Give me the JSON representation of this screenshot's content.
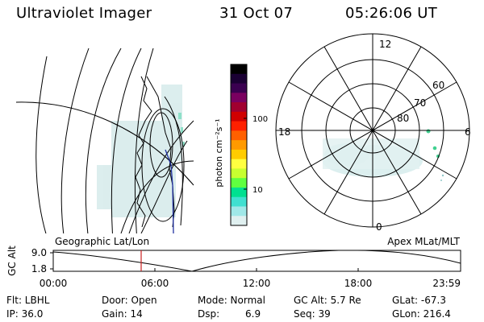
{
  "header": {
    "instrument": "Ultraviolet Imager",
    "date": "31 Oct 07",
    "time": "05:26:06 UT"
  },
  "colorbar": {
    "unit_label": "photon cm⁻²s⁻¹",
    "ticks": [
      "100",
      "10"
    ],
    "colors": [
      "#000000",
      "#1a0033",
      "#3a0050",
      "#7a0060",
      "#a00030",
      "#d00000",
      "#ff2000",
      "#ff6000",
      "#ff9a00",
      "#ffcc00",
      "#ffff40",
      "#c8ff30",
      "#60ff40",
      "#00e090",
      "#40e0d0",
      "#a0e8e8",
      "#e0f0f0"
    ]
  },
  "polar_plot": {
    "mlt_labels": {
      "top": "12",
      "right": "6",
      "bottom": "0",
      "left": "18"
    },
    "lat_labels": [
      "60",
      "70",
      "80"
    ]
  },
  "altitude_plot": {
    "left_title": "Geographic Lat/Lon",
    "right_title": "Apex MLat/MLT",
    "ylabel": "GC Alt",
    "yticks": [
      "9.0",
      "1.8"
    ],
    "xticks": [
      "00:00",
      "06:00",
      "12:00",
      "18:00",
      "23:59"
    ],
    "marker_color": "#cc2222"
  },
  "info": {
    "flt_label": "Flt: LBHL",
    "ip_label": "IP: 36.0",
    "door_label": "Door: Open",
    "gain_label": "Gain: 14",
    "mode_label": "Mode: Normal",
    "dsp_label": "Dsp:",
    "dsp_value": "6.9",
    "gcalt_label": "GC Alt: 5.7 Re",
    "seq_label": "Seq: 39",
    "glat_label": "GLat: -67.3",
    "glon_label": "GLon: 216.4"
  }
}
